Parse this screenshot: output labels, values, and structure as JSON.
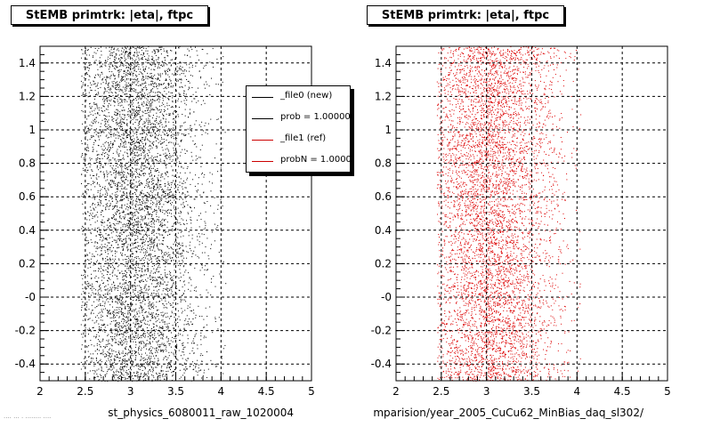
{
  "footer_note": "···· ··· · ········ ····",
  "legend": [
    {
      "label": "_file0 (new)",
      "color": "#000000"
    },
    {
      "label": "prob = 1.000000",
      "color": "#000000"
    },
    {
      "label": "_file1 (ref)",
      "color": "#cc0000"
    },
    {
      "label": "probN = 1.000000",
      "color": "#cc0000"
    }
  ],
  "chart_data": [
    {
      "type": "scatter",
      "title": "StEMB primtrk: |eta|, ftpc",
      "xlabel": "st_physics_6080011_raw_1020004",
      "ylabel": "",
      "xlim": [
        2,
        5
      ],
      "ylim": [
        -0.5,
        1.5
      ],
      "xticks": [
        "2",
        "2.5",
        "3",
        "3.5",
        "4",
        "4.5",
        "5"
      ],
      "yticks": [
        "-0.4",
        "-0.2",
        "-0",
        "0.2",
        "0.4",
        "0.6",
        "0.8",
        "1",
        "1.2",
        "1.4"
      ],
      "grid": true,
      "series": [
        {
          "name": "_file0 (new)",
          "color": "#000000",
          "x_distribution": {
            "center": 3.05,
            "spread": 0.38,
            "min": 2.45,
            "max": 4.05
          },
          "y_range": [
            -0.5,
            1.5
          ]
        }
      ]
    },
    {
      "type": "scatter",
      "title": "StEMB primtrk: |eta|, ftpc",
      "xlabel": "mparision/year_2005_CuCu62_MinBias_daq_sl302/",
      "ylabel": "",
      "xlim": [
        2,
        5
      ],
      "ylim": [
        -0.5,
        1.5
      ],
      "xticks": [
        "2",
        "2.5",
        "3",
        "3.5",
        "4",
        "4.5",
        "5"
      ],
      "yticks": [
        "-0.4",
        "-0.2",
        "-0",
        "0.2",
        "0.4",
        "0.6",
        "0.8",
        "1",
        "1.2",
        "1.4"
      ],
      "grid": true,
      "series": [
        {
          "name": "_file1 (ref)",
          "color": "#dd0000",
          "x_distribution": {
            "center": 3.05,
            "spread": 0.38,
            "min": 2.45,
            "max": 4.05
          },
          "y_range": [
            -0.5,
            1.5
          ]
        }
      ]
    }
  ]
}
